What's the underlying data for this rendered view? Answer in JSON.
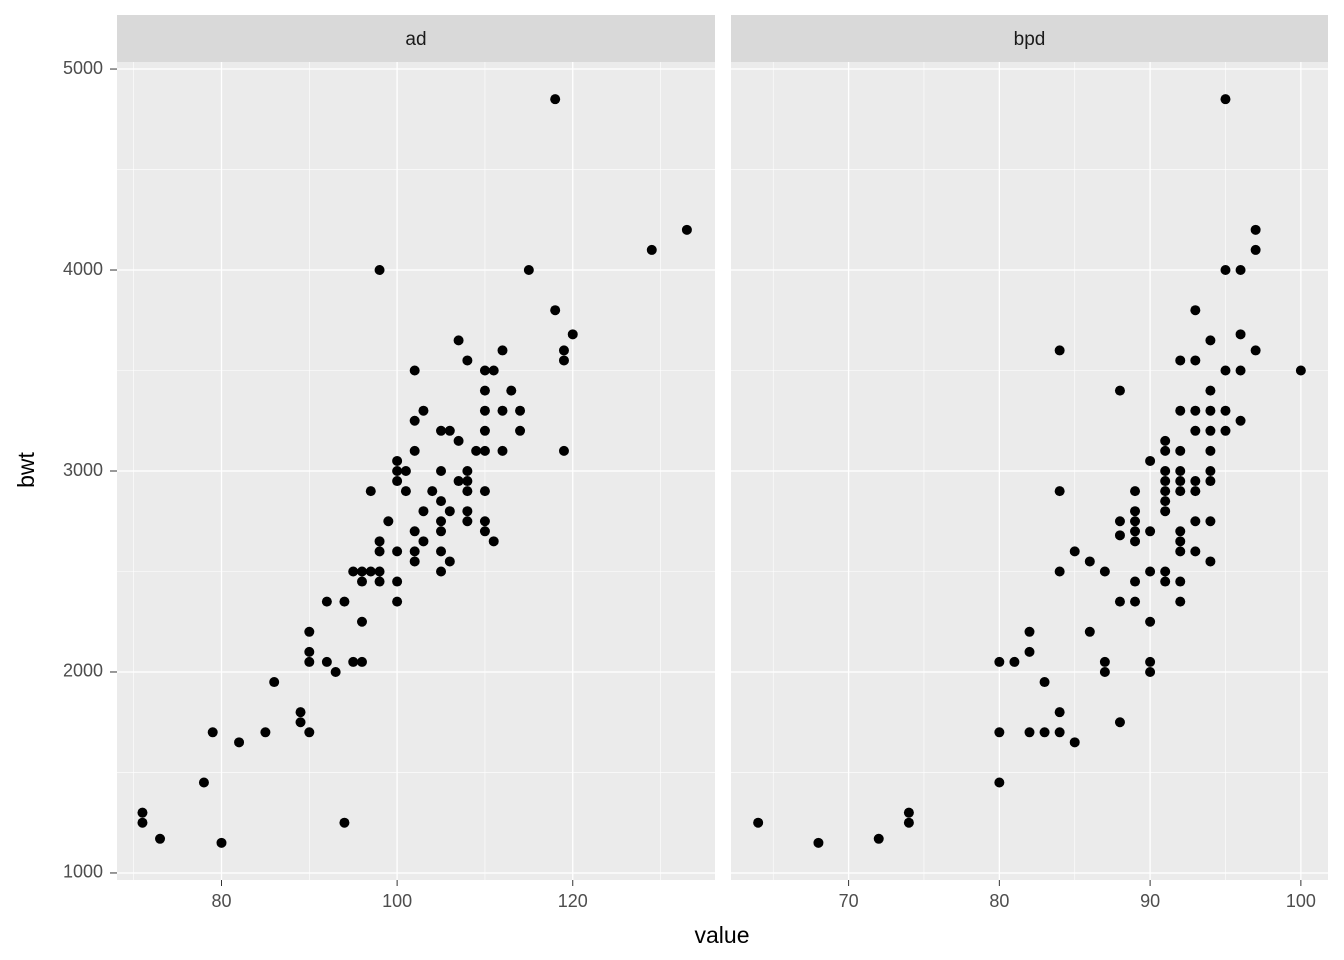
{
  "chart_data": {
    "type": "scatter",
    "x_label": "value",
    "y_label": "bwt",
    "color": "#000000",
    "grid": true,
    "ylim": [
      965,
      5035
    ],
    "yticks": [
      1000,
      2000,
      3000,
      4000,
      5000
    ],
    "facets": [
      {
        "title": "ad",
        "xlim": [
          68.1,
          136.2
        ],
        "xticks": [
          80,
          100,
          120
        ],
        "x": [
          71,
          71,
          73,
          78,
          79,
          80,
          82,
          86,
          85,
          89,
          89,
          90,
          90,
          90,
          90,
          92,
          92,
          93,
          94,
          94,
          95,
          95,
          96,
          96,
          96,
          96,
          97,
          97,
          98,
          98,
          98,
          98,
          98,
          99,
          100,
          100,
          100,
          100,
          100,
          100,
          101,
          101,
          102,
          102,
          102,
          102,
          102,
          102,
          103,
          103,
          103,
          104,
          105,
          105,
          105,
          105,
          105,
          105,
          105,
          106,
          106,
          106,
          107,
          107,
          107,
          108,
          108,
          108,
          108,
          108,
          108,
          109,
          110,
          110,
          110,
          110,
          110,
          110,
          110,
          110,
          111,
          111,
          112,
          112,
          112,
          113,
          114,
          114,
          115,
          118,
          118,
          119,
          119,
          119,
          120,
          129,
          133
        ],
        "y": [
          1300,
          1250,
          1170,
          1450,
          1700,
          1150,
          1650,
          1950,
          1700,
          1800,
          1750,
          2200,
          2100,
          2050,
          1700,
          2350,
          2050,
          2000,
          2350,
          1250,
          2500,
          2050,
          2500,
          2450,
          2250,
          2050,
          2500,
          2900,
          2500,
          2450,
          2600,
          2650,
          4000,
          2750,
          2350,
          2450,
          2600,
          2950,
          3000,
          3050,
          3000,
          2900,
          3500,
          3250,
          3100,
          2700,
          2600,
          2550,
          3300,
          2800,
          2650,
          2900,
          3200,
          3000,
          2850,
          2750,
          2700,
          2600,
          2500,
          3200,
          2800,
          2550,
          3650,
          3150,
          2950,
          3550,
          3000,
          2950,
          2900,
          2800,
          2750,
          3100,
          3500,
          3400,
          3300,
          3200,
          3100,
          2900,
          2750,
          2700,
          3500,
          2650,
          3600,
          3300,
          3100,
          3400,
          3300,
          3200,
          4000,
          4850,
          3800,
          3600,
          3550,
          3100,
          3680,
          4100,
          4200
        ]
      },
      {
        "title": "bpd",
        "xlim": [
          62.2,
          101.8
        ],
        "xticks": [
          70,
          80,
          90,
          100
        ],
        "x": [
          64,
          68,
          72,
          74,
          74,
          80,
          80,
          80,
          81,
          82,
          82,
          82,
          83,
          83,
          84,
          84,
          84,
          84,
          84,
          85,
          85,
          86,
          86,
          87,
          87,
          87,
          88,
          88,
          88,
          88,
          88,
          89,
          89,
          89,
          89,
          89,
          89,
          89,
          90,
          90,
          90,
          90,
          90,
          90,
          91,
          91,
          91,
          91,
          91,
          91,
          91,
          91,
          91,
          92,
          92,
          92,
          92,
          92,
          92,
          92,
          92,
          92,
          92,
          92,
          93,
          93,
          93,
          93,
          93,
          93,
          93,
          93,
          94,
          94,
          94,
          94,
          94,
          94,
          94,
          94,
          94,
          95,
          95,
          95,
          95,
          95,
          96,
          96,
          96,
          96,
          97,
          97,
          97,
          100
        ],
        "y": [
          1250,
          1150,
          1170,
          1300,
          1250,
          1450,
          1700,
          2050,
          2050,
          2200,
          2100,
          1700,
          1950,
          1700,
          3600,
          2900,
          2500,
          1800,
          1700,
          2600,
          1650,
          2550,
          2200,
          2500,
          2050,
          2000,
          3400,
          2750,
          2680,
          2350,
          1750,
          2900,
          2800,
          2750,
          2700,
          2650,
          2450,
          2350,
          3050,
          2700,
          2500,
          2250,
          2050,
          2000,
          3150,
          3100,
          3000,
          2950,
          2900,
          2850,
          2800,
          2500,
          2450,
          3550,
          3300,
          3100,
          3000,
          2950,
          2900,
          2700,
          2650,
          2600,
          2450,
          2350,
          3800,
          3550,
          3300,
          3200,
          2950,
          2900,
          2750,
          2600,
          3650,
          3400,
          3300,
          3200,
          3100,
          3000,
          2950,
          2750,
          2550,
          4850,
          4000,
          3500,
          3300,
          3200,
          4000,
          3680,
          3500,
          3250,
          4200,
          4100,
          3600,
          3500
        ]
      }
    ]
  }
}
